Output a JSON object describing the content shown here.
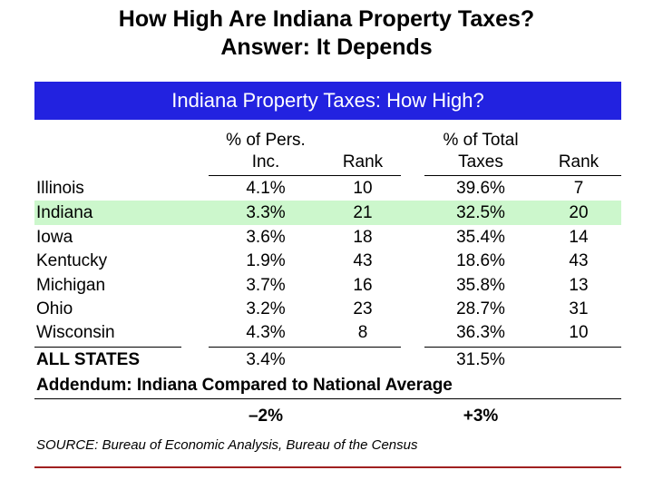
{
  "title_line1": "How High Are Indiana Property Taxes?",
  "title_line2": "Answer: It Depends",
  "table_title": "Indiana Property Taxes: How High?",
  "headers": {
    "pct_income_top": "% of Pers.",
    "pct_income_bottom": "Inc.",
    "rank1": "Rank",
    "pct_taxes_top": "% of Total",
    "pct_taxes_bottom": "Taxes",
    "rank2": "Rank"
  },
  "rows": [
    {
      "state": "Illinois",
      "pct_income": "4.1%",
      "rank1": "10",
      "pct_taxes": "39.6%",
      "rank2": "7"
    },
    {
      "state": "Indiana",
      "pct_income": "3.3%",
      "rank1": "21",
      "pct_taxes": "32.5%",
      "rank2": "20"
    },
    {
      "state": "Iowa",
      "pct_income": "3.6%",
      "rank1": "18",
      "pct_taxes": "35.4%",
      "rank2": "14"
    },
    {
      "state": "Kentucky",
      "pct_income": "1.9%",
      "rank1": "43",
      "pct_taxes": "18.6%",
      "rank2": "43"
    },
    {
      "state": "Michigan",
      "pct_income": "3.7%",
      "rank1": "16",
      "pct_taxes": "35.8%",
      "rank2": "13"
    },
    {
      "state": "Ohio",
      "pct_income": "3.2%",
      "rank1": "23",
      "pct_taxes": "28.7%",
      "rank2": "31"
    },
    {
      "state": "Wisconsin",
      "pct_income": "4.3%",
      "rank1": "8",
      "pct_taxes": "36.3%",
      "rank2": "10"
    }
  ],
  "all_states": {
    "label": "ALL STATES",
    "pct_income": "3.4%",
    "pct_taxes": "31.5%"
  },
  "addendum": {
    "label": "Addendum: Indiana Compared to National Average",
    "pct_income_diff": "–2%",
    "pct_taxes_diff": "+3%"
  },
  "source": "SOURCE: Bureau of Economic Analysis, Bureau of the Census",
  "colors": {
    "banner": "#2222e0",
    "highlight": "#ccf7cc",
    "footer_rule": "#a02020"
  }
}
